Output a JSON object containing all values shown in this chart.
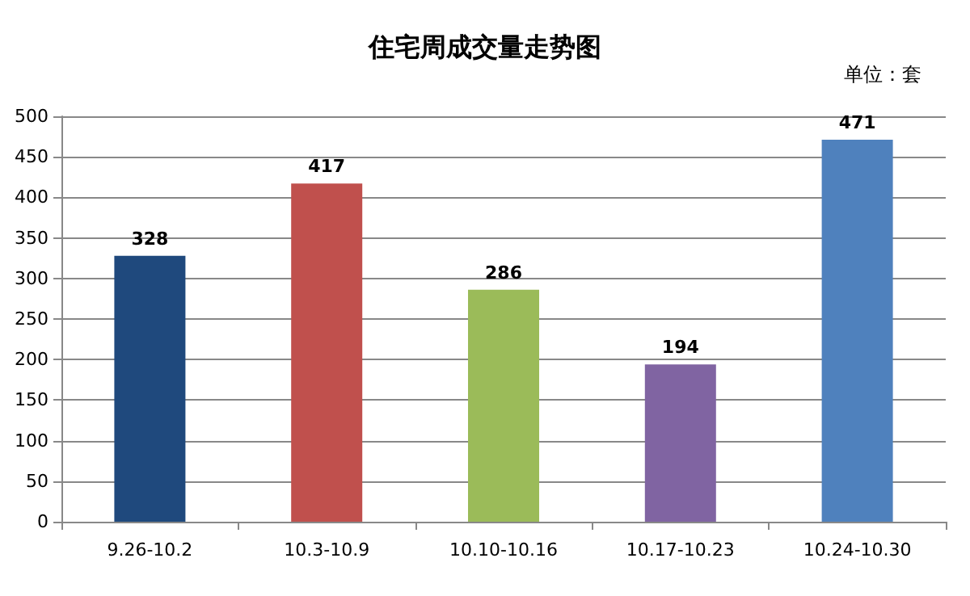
{
  "chart_data": {
    "type": "bar",
    "title": "住宅周成交量走势图",
    "annotations": [
      "单位：套"
    ],
    "categories": [
      "9.26-10.2",
      "10.3-10.9",
      "10.10-10.16",
      "10.17-10.23",
      "10.24-10.30"
    ],
    "values": [
      328,
      417,
      286,
      194,
      471
    ],
    "colors": [
      "#1f497d",
      "#c0504d",
      "#9bbb59",
      "#8064a2",
      "#4f81bd"
    ],
    "ylim": [
      0,
      500
    ],
    "yticks": [
      0,
      50,
      100,
      150,
      200,
      250,
      300,
      350,
      400,
      450,
      500
    ],
    "grid": "y",
    "data_labels": true
  }
}
